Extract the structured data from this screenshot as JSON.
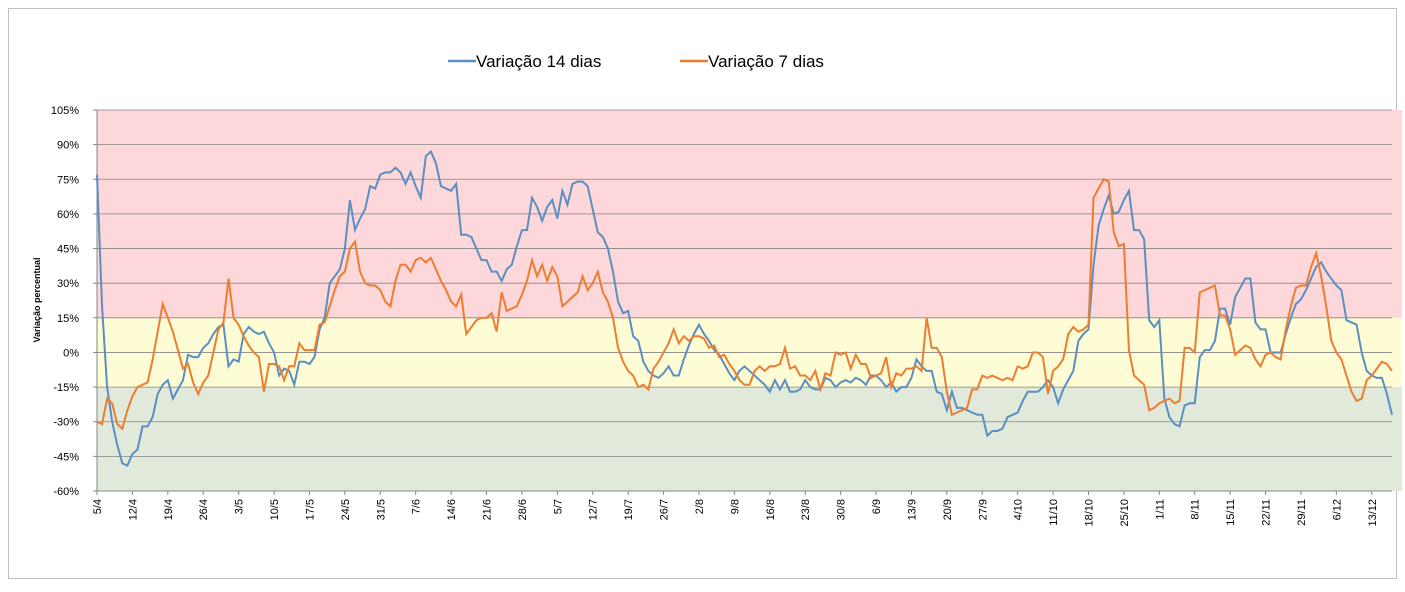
{
  "chart_data": {
    "type": "line",
    "y_label": "Variação percentual",
    "categories": [
      "5/4",
      null,
      null,
      null,
      null,
      null,
      null,
      "12/4",
      null,
      null,
      null,
      null,
      null,
      null,
      "19/4",
      null,
      null,
      null,
      null,
      null,
      null,
      "26/4",
      null,
      null,
      null,
      null,
      null,
      null,
      "3/5",
      null,
      null,
      null,
      null,
      null,
      null,
      "10/5",
      null,
      null,
      null,
      null,
      null,
      null,
      "17/5",
      null,
      null,
      null,
      null,
      null,
      null,
      "24/5",
      null,
      null,
      null,
      null,
      null,
      null,
      "31/5",
      null,
      null,
      null,
      null,
      null,
      null,
      "7/6",
      null,
      null,
      null,
      null,
      null,
      null,
      "14/6",
      null,
      null,
      null,
      null,
      null,
      null,
      "21/6",
      null,
      null,
      null,
      null,
      null,
      null,
      "28/6",
      null,
      null,
      null,
      null,
      null,
      null,
      "5/7",
      null,
      null,
      null,
      null,
      null,
      null,
      "12/7",
      null,
      null,
      null,
      null,
      null,
      null,
      "19/7",
      null,
      null,
      null,
      null,
      null,
      null,
      "26/7",
      null,
      null,
      null,
      null,
      null,
      null,
      "2/8",
      null,
      null,
      null,
      null,
      null,
      null,
      "9/8",
      null,
      null,
      null,
      null,
      null,
      null,
      "16/8",
      null,
      null,
      null,
      null,
      null,
      null,
      "23/8",
      null,
      null,
      null,
      null,
      null,
      null,
      "30/8",
      null,
      null,
      null,
      null,
      null,
      null,
      "6/9",
      null,
      null,
      null,
      null,
      null,
      null,
      "13/9",
      null,
      null,
      null,
      null,
      null,
      null,
      "20/9",
      null,
      null,
      null,
      null,
      null,
      null,
      "27/9",
      null,
      null,
      null,
      null,
      null,
      null,
      "4/10",
      null,
      null,
      null,
      null,
      null,
      null,
      "11/10",
      null,
      null,
      null,
      null,
      null,
      null,
      "18/10",
      null,
      null,
      null,
      null,
      null,
      null,
      "25/10",
      null,
      null,
      null,
      null,
      null,
      null,
      "1/11",
      null,
      null,
      null,
      null,
      null,
      null,
      "8/11",
      null,
      null,
      null,
      null,
      null,
      null,
      "15/11",
      null,
      null,
      null,
      null,
      null,
      null,
      "22/11",
      null,
      null,
      null,
      null,
      null,
      null,
      "29/11",
      null,
      null,
      null,
      null,
      null,
      null,
      "6/12",
      null,
      null,
      null,
      null,
      null,
      null,
      "13/12",
      null,
      null,
      null,
      null
    ],
    "series": [
      {
        "name": "Variação 14 dias",
        "color": "#5b8fc1",
        "values": [
          77,
          20,
          -15,
          -30,
          -40,
          -48,
          -49,
          -44,
          -42,
          -32,
          -32,
          -28,
          -18,
          -14,
          -12,
          -20,
          -16,
          -12,
          -1,
          -2,
          -2,
          2,
          4,
          8,
          11,
          12,
          -6,
          -3,
          -4,
          8,
          11,
          9,
          8,
          9,
          4,
          0,
          -10,
          -7,
          -8,
          -14,
          -4,
          -4,
          -5,
          -2,
          10,
          15,
          30,
          33,
          36,
          45,
          66,
          53,
          58,
          62,
          72,
          71,
          77,
          78,
          78,
          80,
          78,
          73,
          78,
          72,
          67,
          85,
          87,
          82,
          72,
          71,
          70,
          73,
          51,
          51,
          50,
          45,
          40,
          40,
          35,
          35,
          31,
          36,
          38,
          46,
          53,
          53,
          67,
          63,
          57,
          63,
          66,
          58,
          70,
          64,
          73,
          74,
          74,
          72,
          62,
          52,
          50,
          45,
          35,
          22,
          17,
          18,
          7,
          5,
          -4,
          -8,
          -10,
          -11,
          -9,
          -6,
          -10,
          -10,
          -3,
          3,
          8,
          12,
          8,
          5,
          1,
          -1,
          -5,
          -9,
          -12,
          -8,
          -6,
          -8,
          -10,
          -12,
          -14,
          -17,
          -12,
          -16,
          -12,
          -17,
          -17,
          -16,
          -12,
          -15,
          -16,
          -16,
          -11,
          -12,
          -15,
          -13,
          -12,
          -13,
          -11,
          -12,
          -14,
          -10,
          -10,
          -12,
          -15,
          -13,
          -17,
          -15,
          -15,
          -11,
          -3,
          -6,
          -8,
          -8,
          -17,
          -18,
          -25,
          -17,
          -24,
          -24,
          -25,
          -26,
          -27,
          -27,
          -36,
          -34,
          -34,
          -33,
          -28,
          -27,
          -26,
          -21,
          -17,
          -17,
          -17,
          -15,
          -12,
          -15,
          -22,
          -16,
          -12,
          -8,
          5,
          8,
          10,
          38,
          55,
          62,
          68,
          60,
          61,
          66,
          70,
          53,
          53,
          49,
          14,
          11,
          14,
          -20,
          -28,
          -31,
          -32,
          -23,
          -22,
          -22,
          -2,
          1,
          1,
          5,
          19,
          19,
          12,
          24,
          28,
          32,
          32,
          13,
          10,
          10,
          0,
          0,
          0,
          8,
          15,
          21,
          23,
          27,
          32,
          37,
          39,
          35,
          32,
          29,
          27,
          14,
          13,
          12,
          0,
          -8,
          -10,
          -11,
          -11,
          -18,
          -27
        ]
      },
      {
        "name": "Variação 7 dias",
        "color": "#ed7d31",
        "values": [
          -30,
          -31,
          -20,
          -22,
          -31,
          -33,
          -25,
          -19,
          -15,
          -14,
          -13,
          -3,
          9,
          21,
          15,
          9,
          1,
          -7,
          -5,
          -13,
          -18,
          -13,
          -10,
          0,
          10,
          13,
          32,
          15,
          12,
          7,
          3,
          0,
          -2,
          -17,
          -5,
          -5,
          -6,
          -12,
          -6,
          -6,
          4,
          1,
          1,
          1,
          12,
          13,
          20,
          27,
          33,
          35,
          45,
          48,
          35,
          30,
          29,
          29,
          27,
          22,
          20,
          31,
          38,
          38,
          35,
          40,
          41,
          39,
          41,
          36,
          31,
          27,
          22,
          20,
          25,
          8,
          11,
          14,
          15,
          15,
          17,
          9,
          26,
          18,
          19,
          20,
          25,
          31,
          40,
          33,
          38,
          31,
          37,
          33,
          20,
          22,
          24,
          26,
          33,
          27,
          30,
          35,
          26,
          22,
          15,
          2,
          -4,
          -8,
          -10,
          -15,
          -14,
          -16,
          -7,
          -4,
          0,
          4,
          10,
          4,
          7,
          5,
          7,
          7,
          6,
          2,
          3,
          -2,
          -1,
          -5,
          -8,
          -12,
          -14,
          -14,
          -8,
          -6,
          -8,
          -6,
          -6,
          -5,
          2,
          -7,
          -6,
          -10,
          -10,
          -12,
          -8,
          -16,
          -9,
          -10,
          0,
          -1,
          0,
          -7,
          -1,
          -5,
          -5,
          -11,
          -10,
          -9,
          -2,
          -15,
          -9,
          -10,
          -7,
          -7,
          -6,
          -8,
          15,
          2,
          2,
          -2,
          -17,
          -27,
          -26,
          -25,
          -24,
          -16,
          -16,
          -10,
          -11,
          -10,
          -11,
          -12,
          -11,
          -12,
          -6,
          -7,
          -6,
          0,
          0,
          -2,
          -18,
          -8,
          -6,
          -3,
          8,
          11,
          9,
          10,
          12,
          67,
          71,
          75,
          74,
          52,
          46,
          47,
          1,
          -10,
          -12,
          -14,
          -25,
          -24,
          -22,
          -21,
          -20,
          -22,
          -21,
          2,
          2,
          0,
          26,
          27,
          28,
          29,
          16,
          16,
          10,
          -1,
          1,
          3,
          2,
          -3,
          -6,
          -1,
          0,
          -2,
          -3,
          10,
          20,
          28,
          29,
          29,
          37,
          43,
          33,
          20,
          5,
          0,
          -3,
          -10,
          -17,
          -21,
          -20,
          -12,
          -10,
          -7,
          -4,
          -5,
          -8
        ]
      }
    ],
    "ylim": [
      -60,
      105
    ],
    "yticks": [
      {
        "value": -60,
        "label": "-60%"
      },
      {
        "value": -45,
        "label": "-45%"
      },
      {
        "value": -30,
        "label": "-30%"
      },
      {
        "value": -15,
        "label": "-15%"
      },
      {
        "value": 0,
        "label": "0%"
      },
      {
        "value": 15,
        "label": "15%"
      },
      {
        "value": 30,
        "label": "30%"
      },
      {
        "value": 45,
        "label": "45%"
      },
      {
        "value": 60,
        "label": "60%"
      },
      {
        "value": 75,
        "label": "75%"
      },
      {
        "value": 90,
        "label": "90%"
      },
      {
        "value": 105,
        "label": "105%"
      }
    ],
    "grid": true,
    "legend": "top",
    "bands": [
      {
        "from": 15,
        "to": 105,
        "color": "#fdd7d9"
      },
      {
        "from": -15,
        "to": 15,
        "color": "#fefcd4"
      },
      {
        "from": -60,
        "to": -15,
        "color": "#e1e9db"
      }
    ]
  }
}
